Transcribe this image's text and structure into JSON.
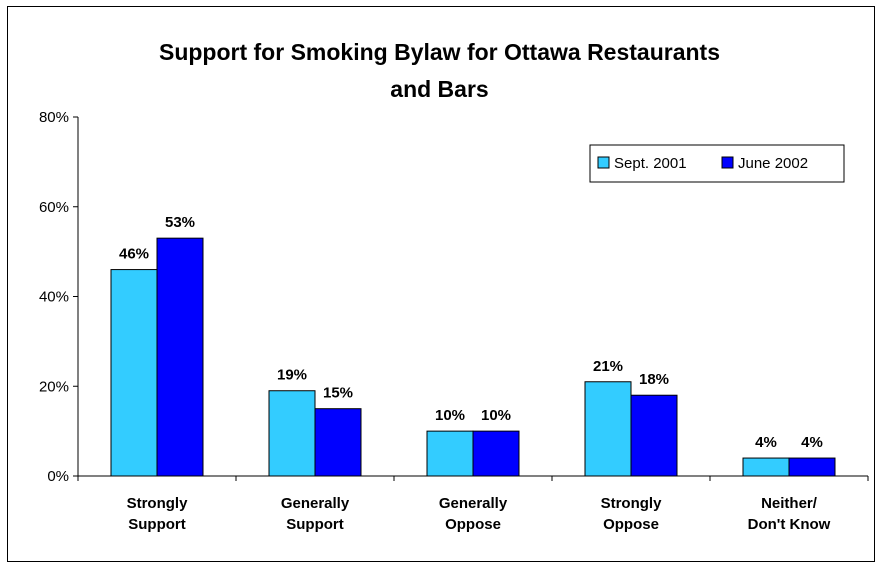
{
  "chart_data": {
    "type": "bar",
    "title_lines": [
      "Support for Smoking Bylaw for Ottawa Restaurants",
      "and Bars"
    ],
    "categories": [
      [
        "Strongly",
        "Support"
      ],
      [
        "Generally",
        "Support"
      ],
      [
        "Generally",
        "Oppose"
      ],
      [
        "Strongly",
        "Oppose"
      ],
      [
        "Neither/",
        "Don't Know"
      ]
    ],
    "series": [
      {
        "name": "Sept. 2001",
        "color": "#33CCFF",
        "values": [
          46,
          19,
          10,
          21,
          4
        ],
        "labels": [
          "46%",
          "19%",
          "10%",
          "21%",
          "4%"
        ]
      },
      {
        "name": "June 2002",
        "color": "#0000FF",
        "values": [
          53,
          15,
          10,
          18,
          4
        ],
        "labels": [
          "53%",
          "15%",
          "10%",
          "18%",
          "4%"
        ]
      }
    ],
    "ylim": [
      0,
      80
    ],
    "yticks": [
      0,
      20,
      40,
      60,
      80
    ],
    "ytick_labels": [
      "0%",
      "20%",
      "40%",
      "60%",
      "80%"
    ],
    "legend_position": "top-right",
    "grid": false
  }
}
